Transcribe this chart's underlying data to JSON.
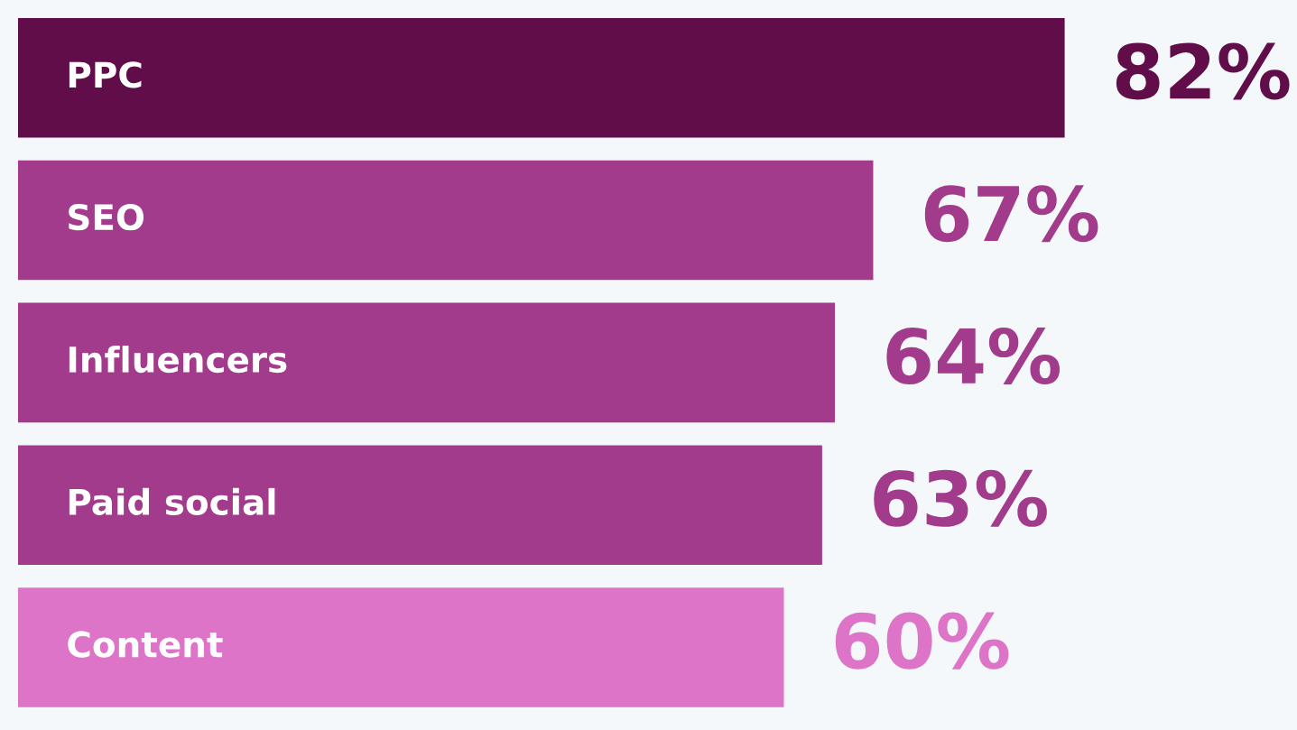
{
  "chart_data": {
    "type": "bar",
    "orientation": "horizontal",
    "categories": [
      "PPC",
      "SEO",
      "Influencers",
      "Paid social",
      "Content"
    ],
    "values": [
      82,
      67,
      64,
      63,
      60
    ],
    "colors": [
      "#610d4a",
      "#a23b8b",
      "#a23b8b",
      "#a23b8b",
      "#de74c7"
    ],
    "value_labels": [
      "82%",
      "67%",
      "64%",
      "63%",
      "60%"
    ]
  }
}
